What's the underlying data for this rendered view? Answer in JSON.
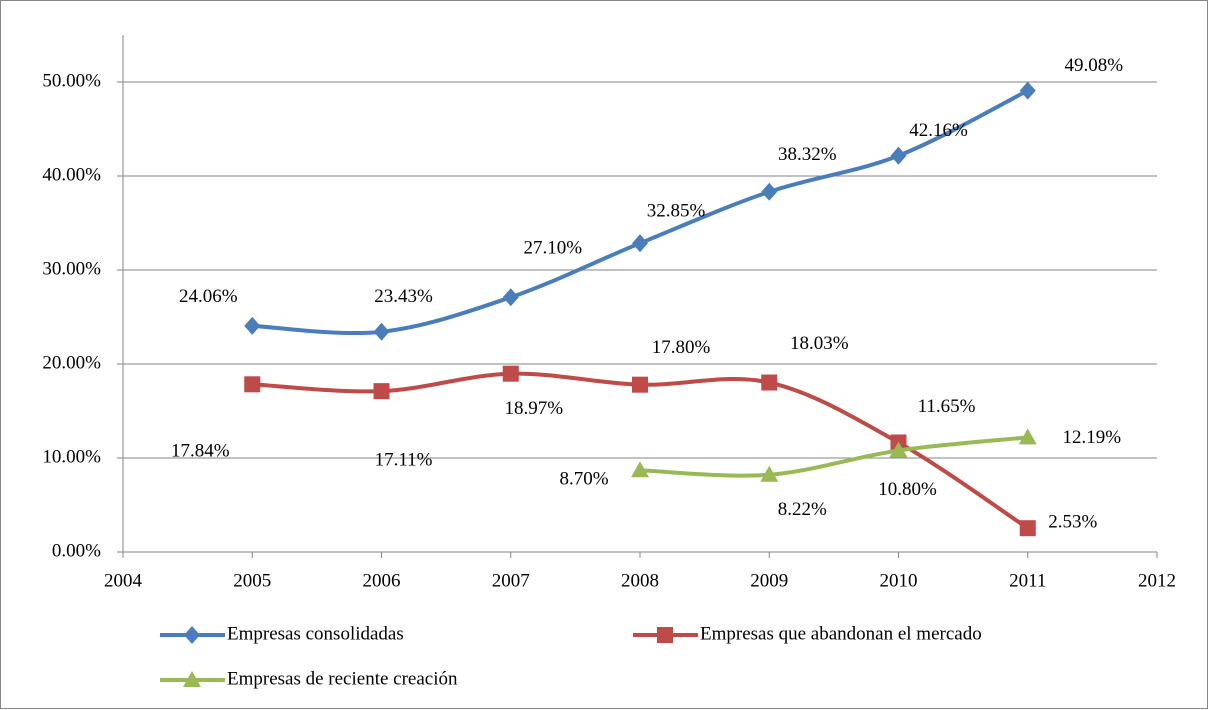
{
  "chart_data": {
    "type": "line",
    "x": [
      2005,
      2006,
      2007,
      2008,
      2009,
      2010,
      2011
    ],
    "xlim": [
      2004,
      2012
    ],
    "xticks": [
      2004,
      2005,
      2006,
      2007,
      2008,
      2009,
      2010,
      2011,
      2012
    ],
    "ylim": [
      0,
      55
    ],
    "yticks": [
      {
        "value": 0,
        "label": "0.00%"
      },
      {
        "value": 10,
        "label": "10.00%"
      },
      {
        "value": 20,
        "label": "20.00%"
      },
      {
        "value": 30,
        "label": "30.00%"
      },
      {
        "value": 40,
        "label": "40.00%"
      },
      {
        "value": 50,
        "label": "50.00%"
      }
    ],
    "grid": true,
    "smooth": true,
    "legend": "bottom",
    "series": [
      {
        "name": "Empresas consolidadas",
        "color": "#4a7ebb",
        "marker": "diamond",
        "values": [
          24.06,
          23.43,
          27.1,
          32.85,
          38.32,
          42.16,
          49.08
        ],
        "value_labels": [
          "24.06%",
          "23.43%",
          "27.10%",
          "32.85%",
          "38.32%",
          "42.16%",
          "49.08%"
        ]
      },
      {
        "name": "Empresas que abandonan el mercado",
        "color": "#be4b48",
        "marker": "square",
        "values": [
          17.84,
          17.11,
          18.97,
          17.8,
          18.03,
          11.65,
          2.53
        ],
        "value_labels": [
          "17.84%",
          "17.11%",
          "18.97%",
          "17.80%",
          "18.03%",
          "11.65%",
          "2.53%"
        ]
      },
      {
        "name": "Empresas de reciente creación",
        "color": "#98b954",
        "marker": "triangle",
        "values": [
          null,
          null,
          null,
          8.7,
          8.22,
          10.8,
          12.19
        ],
        "value_labels": [
          null,
          null,
          null,
          "8.70%",
          "8.22%",
          "10.80%",
          "12.19%"
        ]
      }
    ]
  }
}
